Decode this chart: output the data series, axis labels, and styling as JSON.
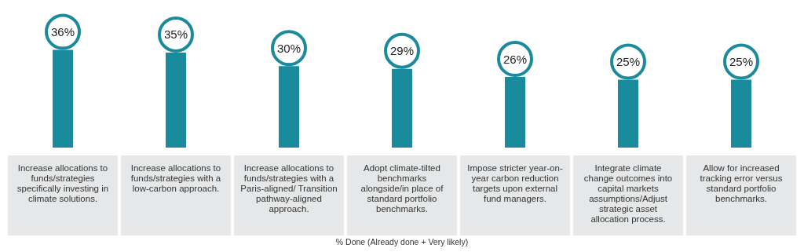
{
  "chart_data": {
    "type": "bar",
    "xlabel": "% Done (Already done + Very likely)",
    "categories": [
      "Increase allocations to funds/strategies specifically investing in climate solutions.",
      "Increase allocations to funds/strategies with a low-carbon approach.",
      "Increase allocations to funds/strategies with a Paris-aligned/ Transition pathway-aligned approach.",
      "Adopt climate-tilted benchmarks alongside/in place of standard portfolio benchmarks.",
      "Impose stricter year-on-year carbon reduction targets upon external fund managers.",
      "Integrate climate change outcomes into capital markets assumptions/Adjust strategic asset allocation process.",
      "Allow for increased tracking error versus standard portfolio benchmarks."
    ],
    "values": [
      36,
      35,
      30,
      29,
      26,
      25,
      25
    ],
    "value_labels": [
      "36%",
      "35%",
      "30%",
      "29%",
      "26%",
      "25%",
      "25%"
    ],
    "color": "#1a8b9c"
  }
}
